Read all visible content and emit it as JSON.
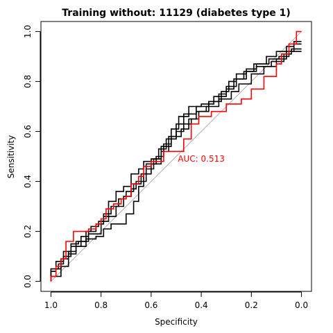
{
  "chart_data": {
    "type": "line",
    "title": "Training without: 11129 (diabetes type 1)",
    "xlabel": "Specificity",
    "ylabel": "Sensitivity",
    "x_reversed": true,
    "xlim": [
      1.04,
      -0.04
    ],
    "ylim": [
      -0.04,
      1.04
    ],
    "x_ticks": [
      1.0,
      0.8,
      0.6,
      0.4,
      0.2,
      0.0
    ],
    "x_tick_labels": [
      "1.0",
      "0.8",
      "0.6",
      "0.4",
      "0.2",
      "0.0"
    ],
    "y_ticks": [
      0.0,
      0.2,
      0.4,
      0.6,
      0.8,
      1.0
    ],
    "y_tick_labels": [
      "0.0",
      "0.2",
      "0.4",
      "0.6",
      "0.8",
      "1.0"
    ],
    "grid": false,
    "reference_line": {
      "from": [
        1.0,
        0.0
      ],
      "to": [
        0.0,
        1.0
      ],
      "color": "#b0b0b0"
    },
    "annotation": {
      "text": "AUC: 0.513",
      "x": 0.4,
      "y": 0.49,
      "color": "#ff0000"
    },
    "series": [
      {
        "color": "#ff0000",
        "points": [
          [
            1.0,
            0.0
          ],
          [
            1.0,
            0.02
          ],
          [
            0.98,
            0.02
          ],
          [
            0.98,
            0.06
          ],
          [
            0.96,
            0.06
          ],
          [
            0.96,
            0.09
          ],
          [
            0.94,
            0.09
          ],
          [
            0.94,
            0.16
          ],
          [
            0.91,
            0.16
          ],
          [
            0.91,
            0.2
          ],
          [
            0.85,
            0.2
          ],
          [
            0.85,
            0.21
          ],
          [
            0.82,
            0.21
          ],
          [
            0.82,
            0.23
          ],
          [
            0.8,
            0.23
          ],
          [
            0.8,
            0.25
          ],
          [
            0.78,
            0.25
          ],
          [
            0.78,
            0.29
          ],
          [
            0.75,
            0.29
          ],
          [
            0.75,
            0.31
          ],
          [
            0.72,
            0.31
          ],
          [
            0.72,
            0.33
          ],
          [
            0.7,
            0.33
          ],
          [
            0.7,
            0.34
          ],
          [
            0.68,
            0.34
          ],
          [
            0.68,
            0.39
          ],
          [
            0.65,
            0.39
          ],
          [
            0.65,
            0.42
          ],
          [
            0.63,
            0.42
          ],
          [
            0.63,
            0.46
          ],
          [
            0.6,
            0.46
          ],
          [
            0.6,
            0.48
          ],
          [
            0.55,
            0.48
          ],
          [
            0.55,
            0.52
          ],
          [
            0.47,
            0.52
          ],
          [
            0.47,
            0.57
          ],
          [
            0.44,
            0.57
          ],
          [
            0.44,
            0.63
          ],
          [
            0.41,
            0.63
          ],
          [
            0.41,
            0.66
          ],
          [
            0.36,
            0.66
          ],
          [
            0.36,
            0.68
          ],
          [
            0.3,
            0.68
          ],
          [
            0.3,
            0.71
          ],
          [
            0.24,
            0.71
          ],
          [
            0.24,
            0.73
          ],
          [
            0.2,
            0.73
          ],
          [
            0.2,
            0.77
          ],
          [
            0.15,
            0.77
          ],
          [
            0.15,
            0.82
          ],
          [
            0.1,
            0.82
          ],
          [
            0.1,
            0.87
          ],
          [
            0.08,
            0.87
          ],
          [
            0.08,
            0.91
          ],
          [
            0.05,
            0.91
          ],
          [
            0.05,
            0.95
          ],
          [
            0.02,
            0.95
          ],
          [
            0.02,
            1.0
          ],
          [
            0.0,
            1.0
          ]
        ]
      },
      {
        "color": "#000000",
        "points": [
          [
            1.0,
            0.0
          ],
          [
            1.0,
            0.04
          ],
          [
            0.98,
            0.04
          ],
          [
            0.98,
            0.05
          ],
          [
            0.96,
            0.05
          ],
          [
            0.96,
            0.09
          ],
          [
            0.93,
            0.09
          ],
          [
            0.93,
            0.12
          ],
          [
            0.9,
            0.12
          ],
          [
            0.9,
            0.16
          ],
          [
            0.86,
            0.16
          ],
          [
            0.86,
            0.2
          ],
          [
            0.84,
            0.2
          ],
          [
            0.84,
            0.22
          ],
          [
            0.81,
            0.22
          ],
          [
            0.81,
            0.24
          ],
          [
            0.79,
            0.24
          ],
          [
            0.79,
            0.27
          ],
          [
            0.76,
            0.27
          ],
          [
            0.76,
            0.3
          ],
          [
            0.73,
            0.3
          ],
          [
            0.73,
            0.33
          ],
          [
            0.7,
            0.33
          ],
          [
            0.7,
            0.36
          ],
          [
            0.67,
            0.36
          ],
          [
            0.67,
            0.39
          ],
          [
            0.64,
            0.39
          ],
          [
            0.64,
            0.43
          ],
          [
            0.62,
            0.43
          ],
          [
            0.62,
            0.47
          ],
          [
            0.58,
            0.47
          ],
          [
            0.58,
            0.5
          ],
          [
            0.55,
            0.5
          ],
          [
            0.55,
            0.55
          ],
          [
            0.52,
            0.55
          ],
          [
            0.52,
            0.58
          ],
          [
            0.48,
            0.58
          ],
          [
            0.48,
            0.61
          ],
          [
            0.45,
            0.61
          ],
          [
            0.45,
            0.65
          ],
          [
            0.42,
            0.65
          ],
          [
            0.42,
            0.68
          ],
          [
            0.38,
            0.68
          ],
          [
            0.38,
            0.7
          ],
          [
            0.33,
            0.7
          ],
          [
            0.33,
            0.73
          ],
          [
            0.28,
            0.73
          ],
          [
            0.28,
            0.76
          ],
          [
            0.25,
            0.76
          ],
          [
            0.25,
            0.79
          ],
          [
            0.2,
            0.79
          ],
          [
            0.2,
            0.83
          ],
          [
            0.15,
            0.83
          ],
          [
            0.15,
            0.86
          ],
          [
            0.1,
            0.86
          ],
          [
            0.1,
            0.89
          ],
          [
            0.06,
            0.89
          ],
          [
            0.06,
            0.92
          ],
          [
            0.03,
            0.92
          ],
          [
            0.03,
            0.95
          ],
          [
            0.0,
            0.95
          ]
        ]
      },
      {
        "color": "#000000",
        "points": [
          [
            1.0,
            0.01
          ],
          [
            1.0,
            0.05
          ],
          [
            0.97,
            0.05
          ],
          [
            0.97,
            0.07
          ],
          [
            0.95,
            0.07
          ],
          [
            0.95,
            0.1
          ],
          [
            0.92,
            0.1
          ],
          [
            0.92,
            0.14
          ],
          [
            0.88,
            0.14
          ],
          [
            0.88,
            0.18
          ],
          [
            0.85,
            0.18
          ],
          [
            0.85,
            0.2
          ],
          [
            0.82,
            0.2
          ],
          [
            0.82,
            0.23
          ],
          [
            0.79,
            0.23
          ],
          [
            0.79,
            0.26
          ],
          [
            0.77,
            0.26
          ],
          [
            0.77,
            0.32
          ],
          [
            0.74,
            0.32
          ],
          [
            0.74,
            0.36
          ],
          [
            0.71,
            0.36
          ],
          [
            0.71,
            0.38
          ],
          [
            0.68,
            0.38
          ],
          [
            0.68,
            0.43
          ],
          [
            0.65,
            0.43
          ],
          [
            0.65,
            0.45
          ],
          [
            0.63,
            0.45
          ],
          [
            0.63,
            0.48
          ],
          [
            0.6,
            0.48
          ],
          [
            0.6,
            0.49
          ],
          [
            0.57,
            0.49
          ],
          [
            0.57,
            0.53
          ],
          [
            0.54,
            0.53
          ],
          [
            0.54,
            0.57
          ],
          [
            0.5,
            0.57
          ],
          [
            0.5,
            0.6
          ],
          [
            0.47,
            0.6
          ],
          [
            0.47,
            0.63
          ],
          [
            0.44,
            0.63
          ],
          [
            0.44,
            0.65
          ],
          [
            0.41,
            0.65
          ],
          [
            0.41,
            0.68
          ],
          [
            0.37,
            0.68
          ],
          [
            0.37,
            0.72
          ],
          [
            0.33,
            0.72
          ],
          [
            0.33,
            0.75
          ],
          [
            0.3,
            0.75
          ],
          [
            0.3,
            0.78
          ],
          [
            0.26,
            0.78
          ],
          [
            0.26,
            0.81
          ],
          [
            0.22,
            0.81
          ],
          [
            0.22,
            0.84
          ],
          [
            0.18,
            0.84
          ],
          [
            0.18,
            0.86
          ],
          [
            0.12,
            0.86
          ],
          [
            0.12,
            0.88
          ],
          [
            0.07,
            0.88
          ],
          [
            0.07,
            0.91
          ],
          [
            0.04,
            0.91
          ],
          [
            0.04,
            0.93
          ],
          [
            0.0,
            0.93
          ]
        ]
      },
      {
        "color": "#000000",
        "points": [
          [
            1.0,
            0.0
          ],
          [
            1.0,
            0.02
          ],
          [
            0.96,
            0.02
          ],
          [
            0.96,
            0.06
          ],
          [
            0.93,
            0.06
          ],
          [
            0.93,
            0.11
          ],
          [
            0.9,
            0.11
          ],
          [
            0.9,
            0.14
          ],
          [
            0.86,
            0.14
          ],
          [
            0.86,
            0.17
          ],
          [
            0.82,
            0.17
          ],
          [
            0.82,
            0.18
          ],
          [
            0.79,
            0.18
          ],
          [
            0.79,
            0.21
          ],
          [
            0.76,
            0.21
          ],
          [
            0.76,
            0.23
          ],
          [
            0.7,
            0.23
          ],
          [
            0.7,
            0.27
          ],
          [
            0.67,
            0.27
          ],
          [
            0.67,
            0.32
          ],
          [
            0.65,
            0.32
          ],
          [
            0.65,
            0.38
          ],
          [
            0.63,
            0.38
          ],
          [
            0.63,
            0.43
          ],
          [
            0.6,
            0.43
          ],
          [
            0.6,
            0.47
          ],
          [
            0.56,
            0.47
          ],
          [
            0.56,
            0.52
          ],
          [
            0.53,
            0.52
          ],
          [
            0.53,
            0.58
          ],
          [
            0.5,
            0.58
          ],
          [
            0.5,
            0.63
          ],
          [
            0.47,
            0.63
          ],
          [
            0.47,
            0.67
          ],
          [
            0.42,
            0.67
          ],
          [
            0.42,
            0.7
          ],
          [
            0.37,
            0.7
          ],
          [
            0.37,
            0.72
          ],
          [
            0.32,
            0.72
          ],
          [
            0.32,
            0.76
          ],
          [
            0.29,
            0.76
          ],
          [
            0.29,
            0.8
          ],
          [
            0.26,
            0.8
          ],
          [
            0.26,
            0.83
          ],
          [
            0.22,
            0.83
          ],
          [
            0.22,
            0.85
          ],
          [
            0.18,
            0.85
          ],
          [
            0.18,
            0.87
          ],
          [
            0.14,
            0.87
          ],
          [
            0.14,
            0.9
          ],
          [
            0.1,
            0.9
          ],
          [
            0.1,
            0.92
          ],
          [
            0.06,
            0.92
          ],
          [
            0.06,
            0.94
          ],
          [
            0.03,
            0.94
          ],
          [
            0.03,
            0.96
          ],
          [
            0.0,
            0.96
          ]
        ]
      },
      {
        "color": "#000000",
        "points": [
          [
            1.0,
            0.02
          ],
          [
            1.0,
            0.04
          ],
          [
            0.98,
            0.04
          ],
          [
            0.98,
            0.08
          ],
          [
            0.95,
            0.08
          ],
          [
            0.95,
            0.12
          ],
          [
            0.92,
            0.12
          ],
          [
            0.92,
            0.15
          ],
          [
            0.89,
            0.15
          ],
          [
            0.89,
            0.16
          ],
          [
            0.85,
            0.16
          ],
          [
            0.85,
            0.19
          ],
          [
            0.8,
            0.19
          ],
          [
            0.8,
            0.24
          ],
          [
            0.77,
            0.24
          ],
          [
            0.77,
            0.26
          ],
          [
            0.74,
            0.26
          ],
          [
            0.74,
            0.3
          ],
          [
            0.71,
            0.3
          ],
          [
            0.71,
            0.34
          ],
          [
            0.68,
            0.34
          ],
          [
            0.68,
            0.37
          ],
          [
            0.66,
            0.37
          ],
          [
            0.66,
            0.4
          ],
          [
            0.62,
            0.4
          ],
          [
            0.62,
            0.45
          ],
          [
            0.59,
            0.45
          ],
          [
            0.59,
            0.49
          ],
          [
            0.56,
            0.49
          ],
          [
            0.56,
            0.54
          ],
          [
            0.52,
            0.54
          ],
          [
            0.52,
            0.61
          ],
          [
            0.49,
            0.61
          ],
          [
            0.49,
            0.66
          ],
          [
            0.45,
            0.66
          ],
          [
            0.45,
            0.7
          ],
          [
            0.4,
            0.7
          ],
          [
            0.4,
            0.71
          ],
          [
            0.35,
            0.71
          ],
          [
            0.35,
            0.74
          ],
          [
            0.3,
            0.74
          ],
          [
            0.3,
            0.77
          ],
          [
            0.27,
            0.77
          ],
          [
            0.27,
            0.81
          ],
          [
            0.23,
            0.81
          ],
          [
            0.23,
            0.84
          ],
          [
            0.19,
            0.84
          ],
          [
            0.19,
            0.87
          ],
          [
            0.13,
            0.87
          ],
          [
            0.13,
            0.89
          ],
          [
            0.09,
            0.89
          ],
          [
            0.09,
            0.9
          ],
          [
            0.05,
            0.9
          ],
          [
            0.05,
            0.92
          ],
          [
            0.0,
            0.92
          ]
        ]
      }
    ]
  }
}
